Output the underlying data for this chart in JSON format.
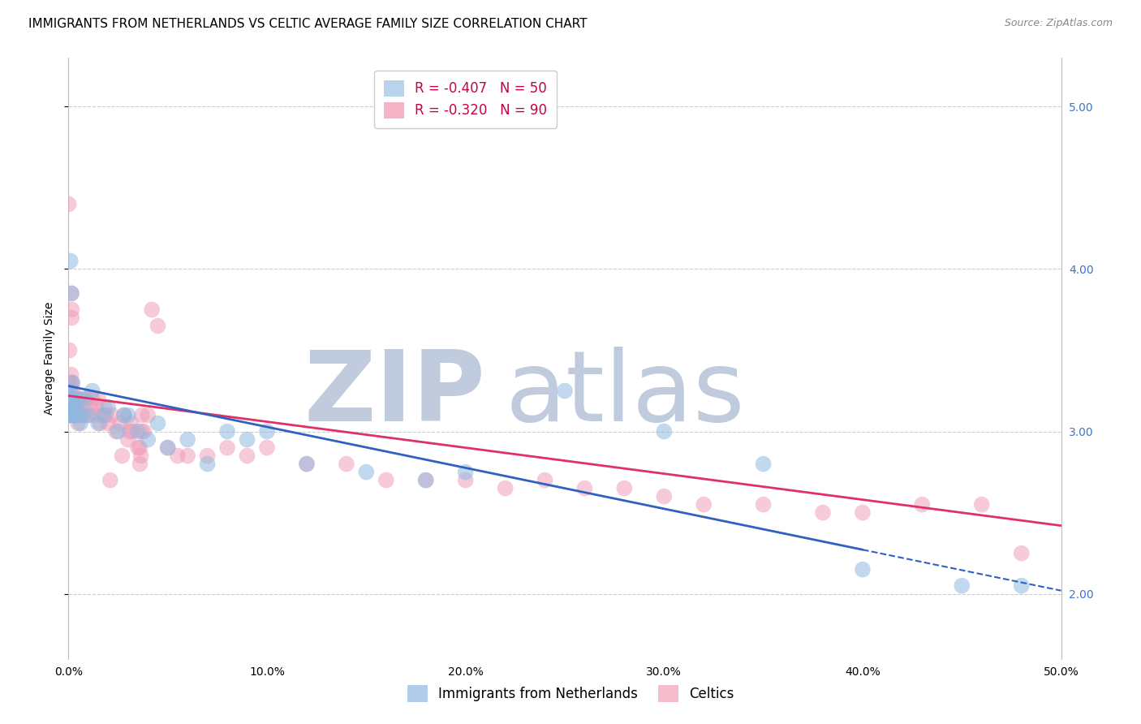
{
  "title": "IMMIGRANTS FROM NETHERLANDS VS CELTIC AVERAGE FAMILY SIZE CORRELATION CHART",
  "source": "Source: ZipAtlas.com",
  "ylabel": "Average Family Size",
  "x_min": 0.0,
  "x_max": 50.0,
  "y_min": 1.6,
  "y_max": 5.3,
  "yticks": [
    2.0,
    3.0,
    4.0,
    5.0
  ],
  "xticks": [
    0.0,
    10.0,
    20.0,
    30.0,
    40.0,
    50.0
  ],
  "legend_entries": [
    {
      "label": "R = -0.407   N = 50",
      "color": "#a8c8e8"
    },
    {
      "label": "R = -0.320   N = 90",
      "color": "#f4a0b8"
    }
  ],
  "series_netherlands": {
    "color": "#90b8e0",
    "x": [
      0.02,
      0.03,
      0.04,
      0.05,
      0.06,
      0.07,
      0.08,
      0.09,
      0.1,
      0.12,
      0.15,
      0.18,
      0.2,
      0.22,
      0.25,
      0.3,
      0.35,
      0.4,
      0.5,
      0.6,
      0.7,
      0.8,
      1.0,
      1.2,
      1.5,
      1.8,
      2.0,
      2.5,
      3.0,
      3.5,
      4.0,
      4.5,
      5.0,
      6.0,
      7.0,
      8.0,
      9.0,
      10.0,
      12.0,
      15.0,
      18.0,
      20.0,
      25.0,
      30.0,
      35.0,
      40.0,
      45.0,
      48.0,
      0.28,
      2.8
    ],
    "y": [
      3.2,
      3.15,
      3.1,
      3.25,
      3.2,
      3.15,
      3.2,
      3.1,
      4.05,
      3.2,
      3.85,
      3.2,
      3.3,
      3.15,
      3.1,
      3.2,
      3.15,
      3.1,
      3.2,
      3.05,
      3.1,
      3.2,
      3.1,
      3.25,
      3.05,
      3.1,
      3.15,
      3.0,
      3.1,
      3.0,
      2.95,
      3.05,
      2.9,
      2.95,
      2.8,
      3.0,
      2.95,
      3.0,
      2.8,
      2.75,
      2.7,
      2.75,
      3.25,
      3.0,
      2.8,
      2.15,
      2.05,
      2.05,
      3.1,
      3.1
    ]
  },
  "series_celtics": {
    "color": "#f0a0b8",
    "x": [
      0.01,
      0.02,
      0.03,
      0.04,
      0.05,
      0.06,
      0.07,
      0.08,
      0.09,
      0.1,
      0.12,
      0.14,
      0.15,
      0.16,
      0.18,
      0.2,
      0.22,
      0.25,
      0.28,
      0.3,
      0.32,
      0.35,
      0.38,
      0.4,
      0.45,
      0.5,
      0.55,
      0.6,
      0.7,
      0.8,
      0.9,
      1.0,
      1.1,
      1.2,
      1.3,
      1.4,
      1.5,
      1.6,
      1.7,
      1.8,
      1.9,
      2.0,
      2.2,
      2.4,
      2.6,
      2.8,
      3.0,
      3.2,
      3.5,
      3.8,
      4.0,
      4.2,
      4.5,
      5.0,
      5.5,
      6.0,
      7.0,
      8.0,
      9.0,
      10.0,
      12.0,
      14.0,
      16.0,
      18.0,
      20.0,
      22.0,
      24.0,
      26.0,
      28.0,
      30.0,
      32.0,
      35.0,
      38.0,
      40.0,
      43.0,
      46.0,
      48.0,
      0.13,
      0.17,
      3.6,
      3.7,
      2.1,
      3.1,
      3.15,
      3.7,
      3.65,
      3.6,
      0.42,
      0.48,
      2.7
    ],
    "y": [
      4.4,
      3.2,
      3.1,
      3.3,
      3.5,
      3.2,
      3.3,
      3.15,
      3.25,
      3.2,
      3.3,
      3.2,
      3.85,
      3.7,
      3.3,
      3.2,
      3.25,
      3.15,
      3.2,
      3.15,
      3.1,
      3.2,
      3.1,
      3.2,
      3.1,
      3.15,
      3.1,
      3.2,
      3.15,
      3.1,
      3.2,
      3.1,
      3.15,
      3.2,
      3.1,
      3.15,
      3.2,
      3.05,
      3.1,
      3.15,
      3.1,
      3.05,
      3.1,
      3.0,
      3.05,
      3.1,
      2.95,
      3.0,
      2.9,
      3.0,
      3.1,
      3.75,
      3.65,
      2.9,
      2.85,
      2.85,
      2.85,
      2.9,
      2.85,
      2.9,
      2.8,
      2.8,
      2.7,
      2.7,
      2.7,
      2.65,
      2.7,
      2.65,
      2.65,
      2.6,
      2.55,
      2.55,
      2.5,
      2.5,
      2.55,
      2.55,
      2.25,
      3.35,
      3.75,
      2.9,
      3.1,
      2.7,
      3.0,
      3.05,
      3.0,
      2.85,
      2.8,
      3.15,
      3.05,
      2.85
    ]
  },
  "trend_netherlands": {
    "x_start": 0.0,
    "x_solid_end": 40.0,
    "x_end": 50.0,
    "y_start": 3.28,
    "y_end": 2.02,
    "color": "#3060c0"
  },
  "trend_celtics": {
    "x_start": 0.0,
    "x_end": 50.0,
    "y_start": 3.22,
    "y_end": 2.42,
    "color": "#e0306a"
  },
  "watermark_zip": "ZIP",
  "watermark_atlas": "atlas",
  "watermark_color_zip": "#c0ccdd",
  "watermark_color_atlas": "#c0ccdd",
  "background_color": "#ffffff",
  "grid_color": "#cccccc",
  "title_fontsize": 11,
  "axis_label_fontsize": 10,
  "tick_fontsize": 10,
  "legend_fontsize": 12
}
